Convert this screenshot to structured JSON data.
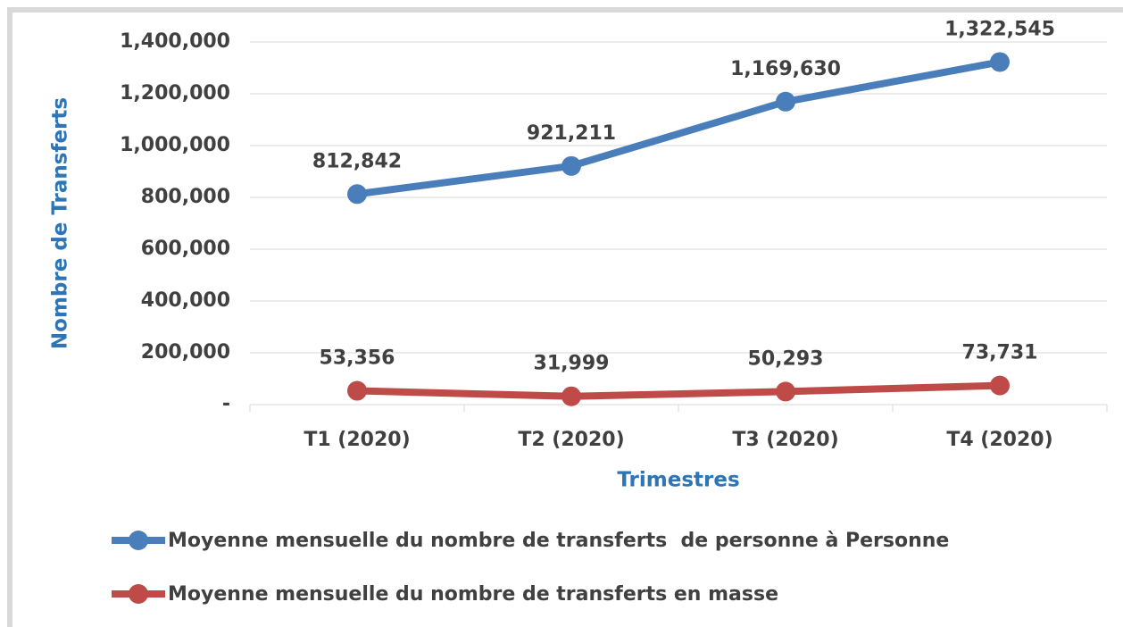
{
  "chart_data": {
    "type": "line",
    "x_label": "Trimestres",
    "y_label": "Nombre de Transferts",
    "categories": [
      "T1 (2020)",
      "T2 (2020)",
      "T3 (2020)",
      "T4 (2020)"
    ],
    "series": [
      {
        "name": "Moyenne mensuelle du nombre de transferts  de personne à Personne",
        "color": "#4a7ebb",
        "values": [
          812842,
          921211,
          1169630,
          1322545
        ],
        "value_labels": [
          "812,842",
          "921,211",
          "1,169,630",
          "1,322,545"
        ]
      },
      {
        "name": "Moyenne mensuelle du nombre de transferts en masse",
        "color": "#be4b48",
        "values": [
          53356,
          31999,
          50293,
          73731
        ],
        "value_labels": [
          "53,356",
          "31,999",
          "50,293",
          "73,731"
        ]
      }
    ],
    "ylim": [
      0,
      1400000
    ],
    "yticks": [
      {
        "value": 0,
        "label": "-"
      },
      {
        "value": 200000,
        "label": "200,000"
      },
      {
        "value": 400000,
        "label": "400,000"
      },
      {
        "value": 600000,
        "label": "600,000"
      },
      {
        "value": 800000,
        "label": "800,000"
      },
      {
        "value": 1000000,
        "label": "1,000,000"
      },
      {
        "value": 1200000,
        "label": "1,200,000"
      },
      {
        "value": 1400000,
        "label": "1,400,000"
      }
    ],
    "grid": true,
    "legend": "bottom"
  }
}
